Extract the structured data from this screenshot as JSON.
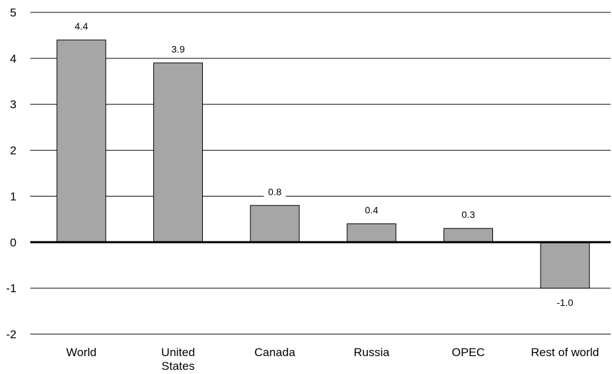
{
  "chart_data": {
    "type": "bar",
    "categories": [
      [
        "World"
      ],
      [
        "United",
        "States"
      ],
      [
        "Canada"
      ],
      [
        "Russia"
      ],
      [
        "OPEC"
      ],
      [
        "Rest of world"
      ]
    ],
    "values": [
      4.4,
      3.9,
      0.8,
      0.4,
      0.3,
      -1.0
    ],
    "data_labels": [
      "4.4",
      "3.9",
      "0.8",
      "0.4",
      "0.3",
      "-1.0"
    ],
    "y_ticks": [
      5,
      4,
      3,
      2,
      1,
      0,
      -1,
      -2
    ],
    "ylim": [
      -2,
      5
    ],
    "grid": true,
    "bar_color": "#a6a6a6"
  }
}
